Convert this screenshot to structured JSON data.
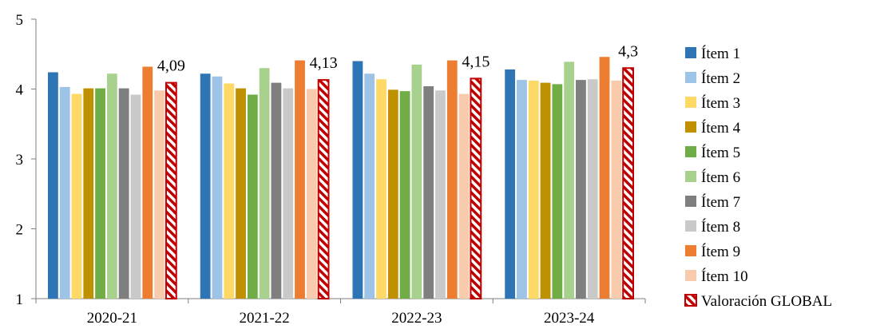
{
  "chart_data": {
    "type": "bar",
    "categories": [
      "2020-21",
      "2021-22",
      "2022-23",
      "2023-24"
    ],
    "ylim": [
      1,
      5
    ],
    "yticks": [
      1,
      2,
      3,
      4,
      5
    ],
    "grid": false,
    "legend_position": "right",
    "series": [
      {
        "name": "Ítem 1",
        "color": "#2E75B6",
        "values": [
          4.24,
          4.22,
          4.4,
          4.28
        ]
      },
      {
        "name": "Ítem 2",
        "color": "#9DC3E6",
        "values": [
          4.03,
          4.18,
          4.22,
          4.13
        ]
      },
      {
        "name": "Ítem 3",
        "color": "#FFD966",
        "values": [
          3.93,
          4.08,
          4.14,
          4.12
        ]
      },
      {
        "name": "Ítem 4",
        "color": "#BF9000",
        "values": [
          4.01,
          4.01,
          3.99,
          4.09
        ]
      },
      {
        "name": "Ítem 5",
        "color": "#70AD47",
        "values": [
          4.01,
          3.92,
          3.97,
          4.07
        ]
      },
      {
        "name": "Ítem 6",
        "color": "#A9D18E",
        "values": [
          4.22,
          4.3,
          4.35,
          4.39
        ]
      },
      {
        "name": "Ítem 7",
        "color": "#7F7F7F",
        "values": [
          4.01,
          4.09,
          4.04,
          4.13
        ]
      },
      {
        "name": "Ítem 8",
        "color": "#C9C9C9",
        "values": [
          3.92,
          4.01,
          3.98,
          4.14
        ]
      },
      {
        "name": "Ítem 9",
        "color": "#ED7D31",
        "values": [
          4.32,
          4.41,
          4.41,
          4.46
        ]
      },
      {
        "name": "Ítem 10",
        "color": "#F8CBAD",
        "values": [
          3.98,
          4.0,
          3.93,
          4.12
        ]
      },
      {
        "name": "Valoración GLOBAL",
        "color": "#C00000",
        "pattern": "diagonal-hatch",
        "values": [
          4.09,
          4.13,
          4.15,
          4.3
        ],
        "data_labels": [
          "4,09",
          "4,13",
          "4,15",
          "4,3"
        ]
      }
    ]
  }
}
